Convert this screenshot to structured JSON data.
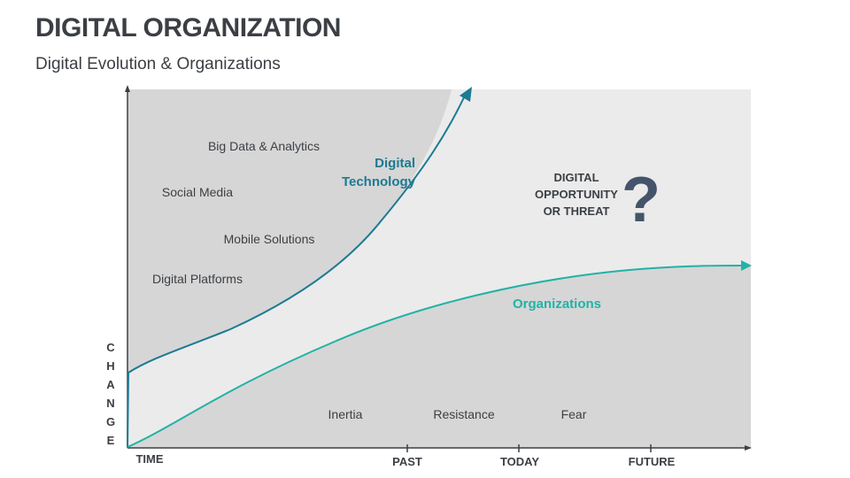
{
  "header": {
    "title": "DIGITAL ORGANIZATION",
    "subtitle": "Digital Evolution & Organizations"
  },
  "diagram": {
    "y_axis_label_letters": [
      "C",
      "H",
      "A",
      "N",
      "G",
      "E"
    ],
    "x_axis": {
      "time": "TIME",
      "past": "PAST",
      "today": "TODAY",
      "future": "FUTURE"
    },
    "curves": {
      "digital_technology": {
        "label_line1": "Digital",
        "label_line2": "Technology",
        "color": "#1d7a92"
      },
      "organizations": {
        "label": "Organizations",
        "color": "#22b2a6"
      }
    },
    "upper_items": [
      "Big Data & Analytics",
      "Social Media",
      "Mobile Solutions",
      "Digital Platforms"
    ],
    "lower_items": [
      "Inertia",
      "Resistance",
      "Fear"
    ],
    "opportunity": {
      "line1": "DIGITAL",
      "line2": "OPPORTUNITY",
      "line3": "OR THREAT",
      "symbol": "?"
    },
    "colors": {
      "dark_region": "#d6d6d6",
      "light_region": "#ebebeb",
      "text": "#3b3f44",
      "question_mark": "#44546a"
    }
  }
}
